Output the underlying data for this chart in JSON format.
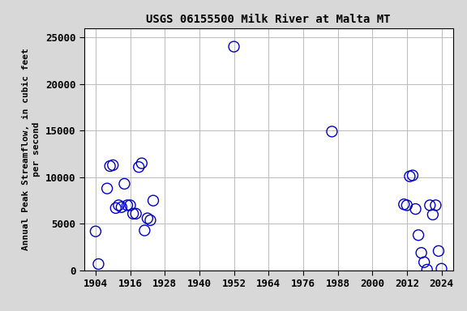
{
  "title": "USGS 06155500 Milk River at Malta MT",
  "ylabel": "Annual Peak Streamflow, in cubic feet\nper second",
  "xlabel": "",
  "years": [
    1904,
    1905,
    1908,
    1909,
    1910,
    1911,
    1912,
    1913,
    1914,
    1915,
    1916,
    1917,
    1918,
    1919,
    1920,
    1921,
    1922,
    1923,
    1924,
    1952,
    1986,
    2011,
    2012,
    2013,
    2014,
    2015,
    2016,
    2017,
    2018,
    2019,
    2020,
    2021,
    2022,
    2023,
    2024
  ],
  "flows": [
    4200,
    700,
    8800,
    11200,
    11300,
    6700,
    7000,
    6800,
    9300,
    7000,
    7000,
    6100,
    6100,
    11100,
    11500,
    4300,
    5600,
    5400,
    7500,
    24000,
    14900,
    7100,
    7000,
    10100,
    10200,
    6600,
    3800,
    1900,
    900,
    100,
    7000,
    6000,
    7000,
    2100,
    200
  ],
  "xlim": [
    1900,
    2028
  ],
  "ylim": [
    0,
    26000
  ],
  "xticks": [
    1904,
    1916,
    1928,
    1940,
    1952,
    1964,
    1976,
    1988,
    2000,
    2012,
    2024
  ],
  "yticks": [
    0,
    5000,
    10000,
    15000,
    20000,
    25000
  ],
  "marker_color": "#0000cc",
  "marker_size": 5,
  "grid_color": "#c0c0c0",
  "bg_color": "#d8d8d8",
  "plot_bg_color": "#ffffff",
  "title_fontsize": 10,
  "label_fontsize": 8,
  "tick_fontsize": 9
}
